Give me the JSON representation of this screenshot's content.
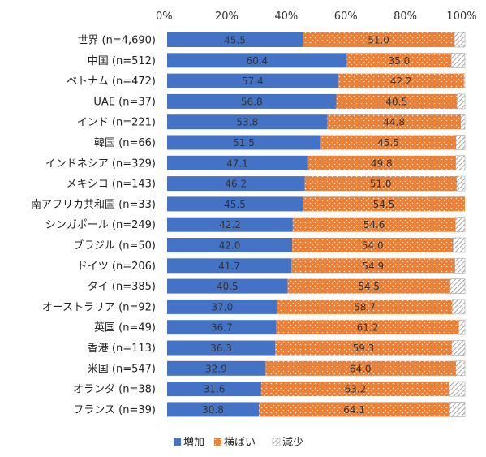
{
  "chart_data": {
    "type": "bar",
    "orientation": "horizontal",
    "stacked": true,
    "title": "",
    "xlabel": "",
    "ylabel": "",
    "xlim": [
      0,
      100
    ],
    "x_ticks": [
      "0%",
      "20%",
      "40%",
      "60%",
      "80%",
      "100%"
    ],
    "grid": false,
    "legend_position": "bottom",
    "categories": [
      "世界 (n=4,690)",
      "中国 (n=512)",
      "ベトナム (n=472)",
      "UAE (n=37)",
      "インド (n=221)",
      "韓国 (n=66)",
      "インドネシア (n=329)",
      "メキシコ (n=143)",
      "南アフリカ共和国 (n=33)",
      "シンガポール (n=249)",
      "ブラジル (n=50)",
      "ドイツ (n=206)",
      "タイ (n=385)",
      "オーストラリア (n=92)",
      "英国 (n=49)",
      "香港 (n=113)",
      "米国 (n=547)",
      "オランダ (n=38)",
      "フランス (n=39)"
    ],
    "series": [
      {
        "name": "増加",
        "color": "#4472C4",
        "values": [
          45.5,
          60.4,
          57.4,
          56.8,
          53.8,
          51.5,
          47.1,
          46.2,
          45.5,
          42.2,
          42.0,
          41.7,
          40.5,
          37.0,
          36.7,
          36.3,
          32.9,
          31.6,
          30.8
        ],
        "labels": [
          "45.5",
          "60.4",
          "57.4",
          "56.8",
          "53.8",
          "51.5",
          "47.1",
          "46.2",
          "45.5",
          "42.2",
          "42.0",
          "41.7",
          "40.5",
          "37.0",
          "36.7",
          "36.3",
          "32.9",
          "31.6",
          "30.8"
        ]
      },
      {
        "name": "横ばい",
        "color": "#ED7D31",
        "values": [
          51.0,
          35.0,
          42.2,
          40.5,
          44.8,
          45.5,
          49.8,
          51.0,
          54.5,
          54.6,
          54.0,
          54.9,
          54.5,
          58.7,
          61.2,
          59.3,
          64.0,
          63.2,
          64.1
        ],
        "labels": [
          "51.0",
          "35.0",
          "42.2",
          "40.5",
          "44.8",
          "45.5",
          "49.8",
          "51.0",
          "54.5",
          "54.6",
          "54.0",
          "54.9",
          "54.5",
          "58.7",
          "61.2",
          "59.3",
          "64.0",
          "63.2",
          "64.1"
        ]
      },
      {
        "name": "減少",
        "color": "#A5A5A5",
        "values": [
          3.5,
          4.6,
          0.4,
          2.7,
          1.4,
          3.0,
          3.1,
          2.8,
          0.0,
          3.2,
          4.0,
          3.4,
          5.0,
          4.3,
          2.1,
          4.4,
          3.1,
          5.2,
          5.1
        ]
      }
    ]
  }
}
